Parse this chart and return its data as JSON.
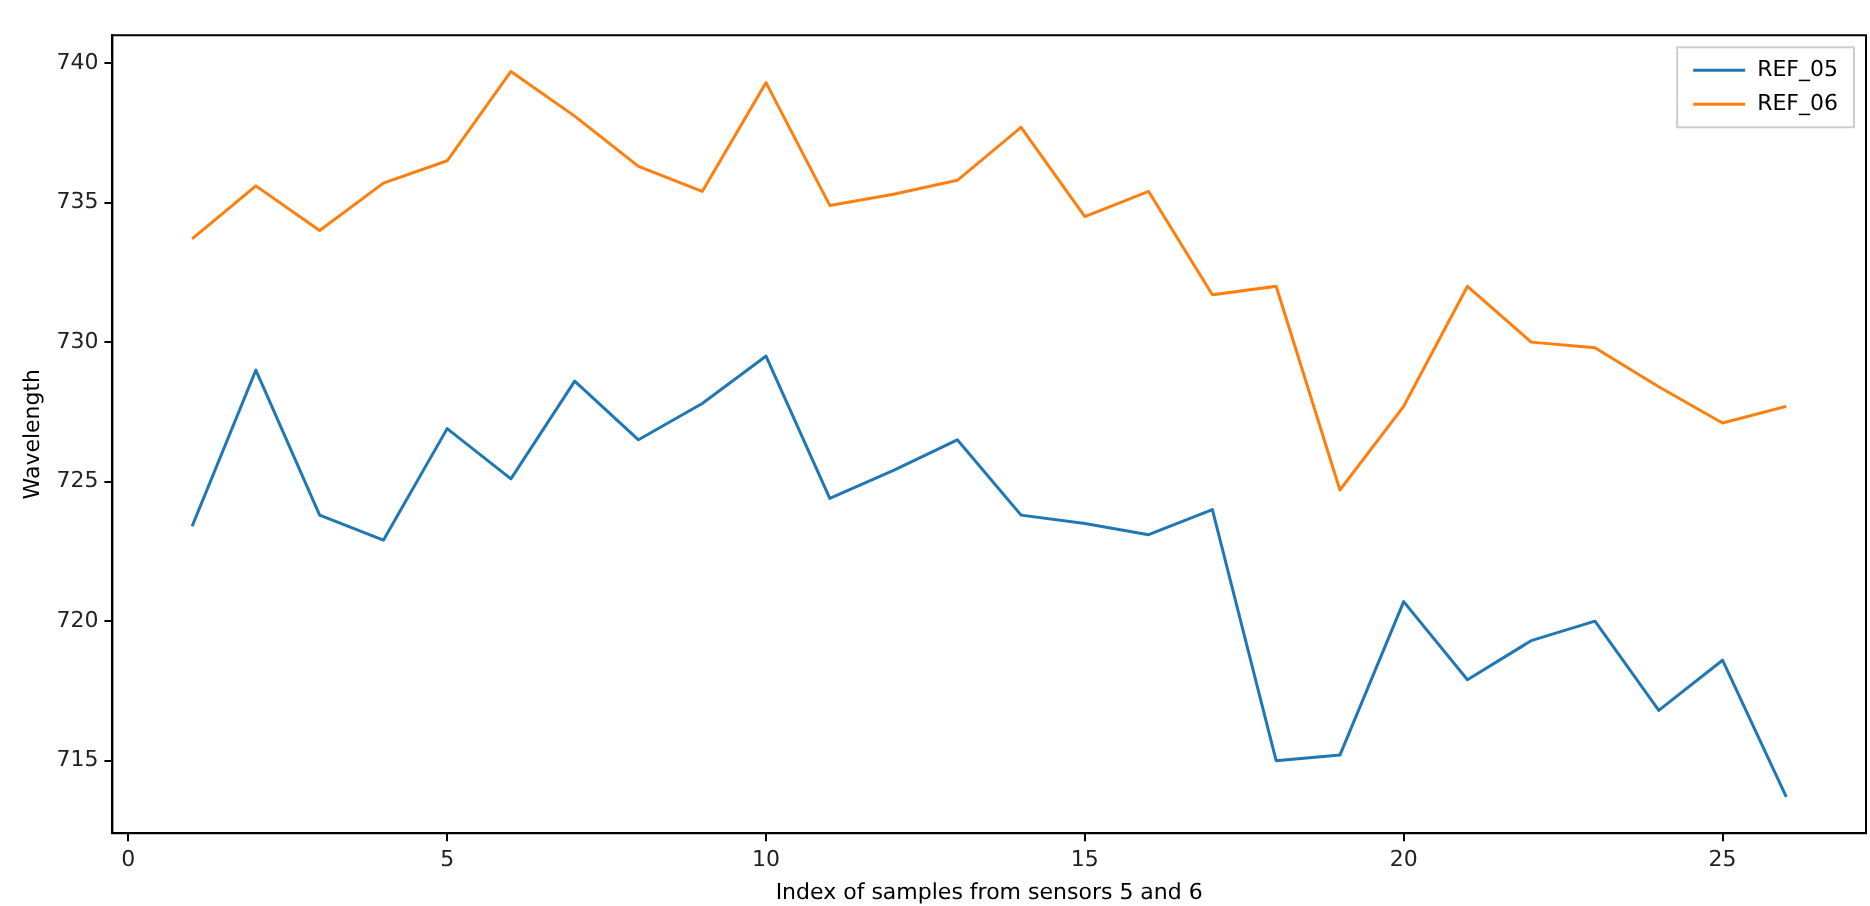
{
  "chart_data": {
    "type": "line",
    "xlabel": "Index of samples from sensors 5 and 6",
    "ylabel": "Wavelength",
    "x": [
      1,
      2,
      3,
      4,
      5,
      6,
      7,
      8,
      9,
      10,
      11,
      12,
      13,
      14,
      15,
      16,
      17,
      18,
      19,
      20,
      21,
      22,
      23,
      24,
      25,
      26
    ],
    "series": [
      {
        "name": "REF_05",
        "color": "#1f77b4",
        "values": [
          723.4,
          729.0,
          723.8,
          722.9,
          726.9,
          725.1,
          728.6,
          726.5,
          727.8,
          729.5,
          724.4,
          725.4,
          726.5,
          723.8,
          723.5,
          723.1,
          724.0,
          715.0,
          715.2,
          720.7,
          717.9,
          719.3,
          720.0,
          716.8,
          718.6,
          713.7
        ]
      },
      {
        "name": "REF_06",
        "color": "#ff7f0e",
        "values": [
          733.7,
          735.6,
          734.0,
          735.7,
          736.5,
          739.7,
          738.1,
          736.3,
          735.4,
          739.3,
          734.9,
          735.3,
          735.8,
          737.7,
          734.5,
          735.4,
          731.7,
          732.0,
          724.7,
          727.7,
          732.0,
          730.0,
          729.8,
          728.4,
          727.1,
          727.7
        ]
      }
    ],
    "xlim": [
      -0.25,
      27.25
    ],
    "xticks": [
      0,
      5,
      10,
      15,
      20,
      25
    ],
    "ylim": [
      712.4,
      741
    ],
    "yticks": [
      715,
      720,
      725,
      730,
      735,
      740
    ],
    "grid": false,
    "legend": "top right",
    "marker": "none",
    "line_style": "solid"
  }
}
